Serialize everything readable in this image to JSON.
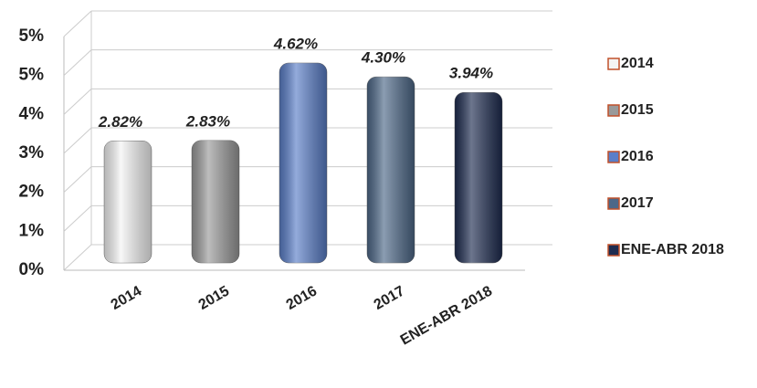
{
  "chart_data": {
    "type": "bar",
    "categories": [
      "2014",
      "2015",
      "2016",
      "2017",
      "ENE-ABR 2018"
    ],
    "values": [
      2.82,
      2.83,
      4.62,
      4.3,
      3.94
    ],
    "value_labels": [
      "2.82%",
      "2.83%",
      "4.62%",
      "4.30%",
      "3.94%"
    ],
    "colors": [
      "#f4f4f4",
      "#9a9a9a",
      "#5a7ec8",
      "#4d6888",
      "#1e2c50"
    ],
    "ylim": [
      0,
      5.4
    ],
    "yticks": [
      {
        "value": 0,
        "label": "0%"
      },
      {
        "value": 0.9,
        "label": "1%"
      },
      {
        "value": 1.8,
        "label": "2%"
      },
      {
        "value": 2.7,
        "label": "3%"
      },
      {
        "value": 3.6,
        "label": "4%"
      },
      {
        "value": 4.5,
        "label": "5%"
      },
      {
        "value": 5.4,
        "label": "5%"
      }
    ],
    "grid": true,
    "legend": "right"
  }
}
